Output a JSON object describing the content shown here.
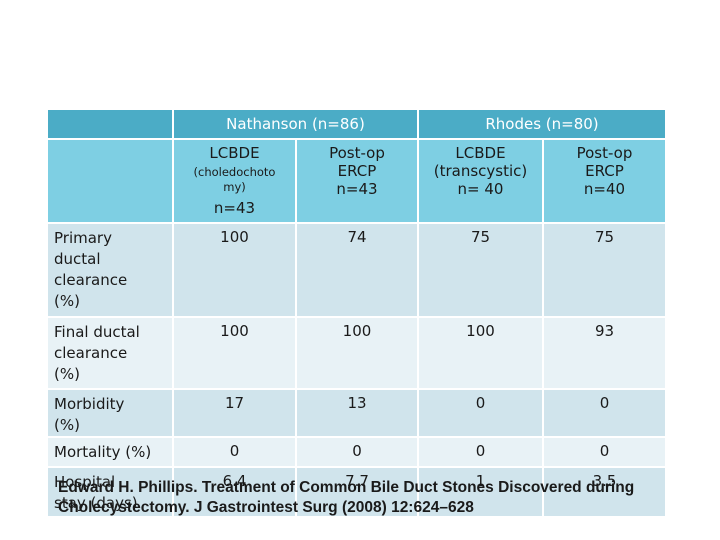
{
  "table": {
    "group_headers": [
      "Nathanson (n=86)",
      "Rhodes (n=80)"
    ],
    "subheaders": [
      {
        "line1": "LCBDE",
        "small": "(choledochoto my)",
        "line2": "n=43"
      },
      {
        "line1": "Post-op",
        "line2": "ERCP",
        "line3": "n=43"
      },
      {
        "line1": "LCBDE",
        "line2": "(transcystic)",
        "line3": "n= 40"
      },
      {
        "line1": "Post-op",
        "line2": "ERCP",
        "line3": "n=40"
      }
    ],
    "rows": [
      {
        "label": "Primary ductal clearance (%)",
        "values": [
          "100",
          "74",
          "75",
          "75"
        ]
      },
      {
        "label": "Final ductal clearance (%)",
        "values": [
          "100",
          "100",
          "100",
          "93"
        ]
      },
      {
        "label": "Morbidity (%)",
        "values": [
          "17",
          "13",
          "0",
          "0"
        ]
      },
      {
        "label": "Mortality (%)",
        "values": [
          "0",
          "0",
          "0",
          "0"
        ]
      },
      {
        "label": "Hospital stay (days)",
        "values": [
          "6.4",
          "7.7",
          "1",
          "3.5"
        ]
      }
    ]
  },
  "citation": "Edward H. Phillips. Treatment of Common Bile Duct Stones Discovered during Cholecystectomy. J Gastrointest Surg (2008) 12:624–628",
  "colors": {
    "header": "#4bacc6",
    "subheader": "#7ecfe3",
    "row_dark": "#d0e4ec",
    "row_light": "#e8f2f6"
  }
}
